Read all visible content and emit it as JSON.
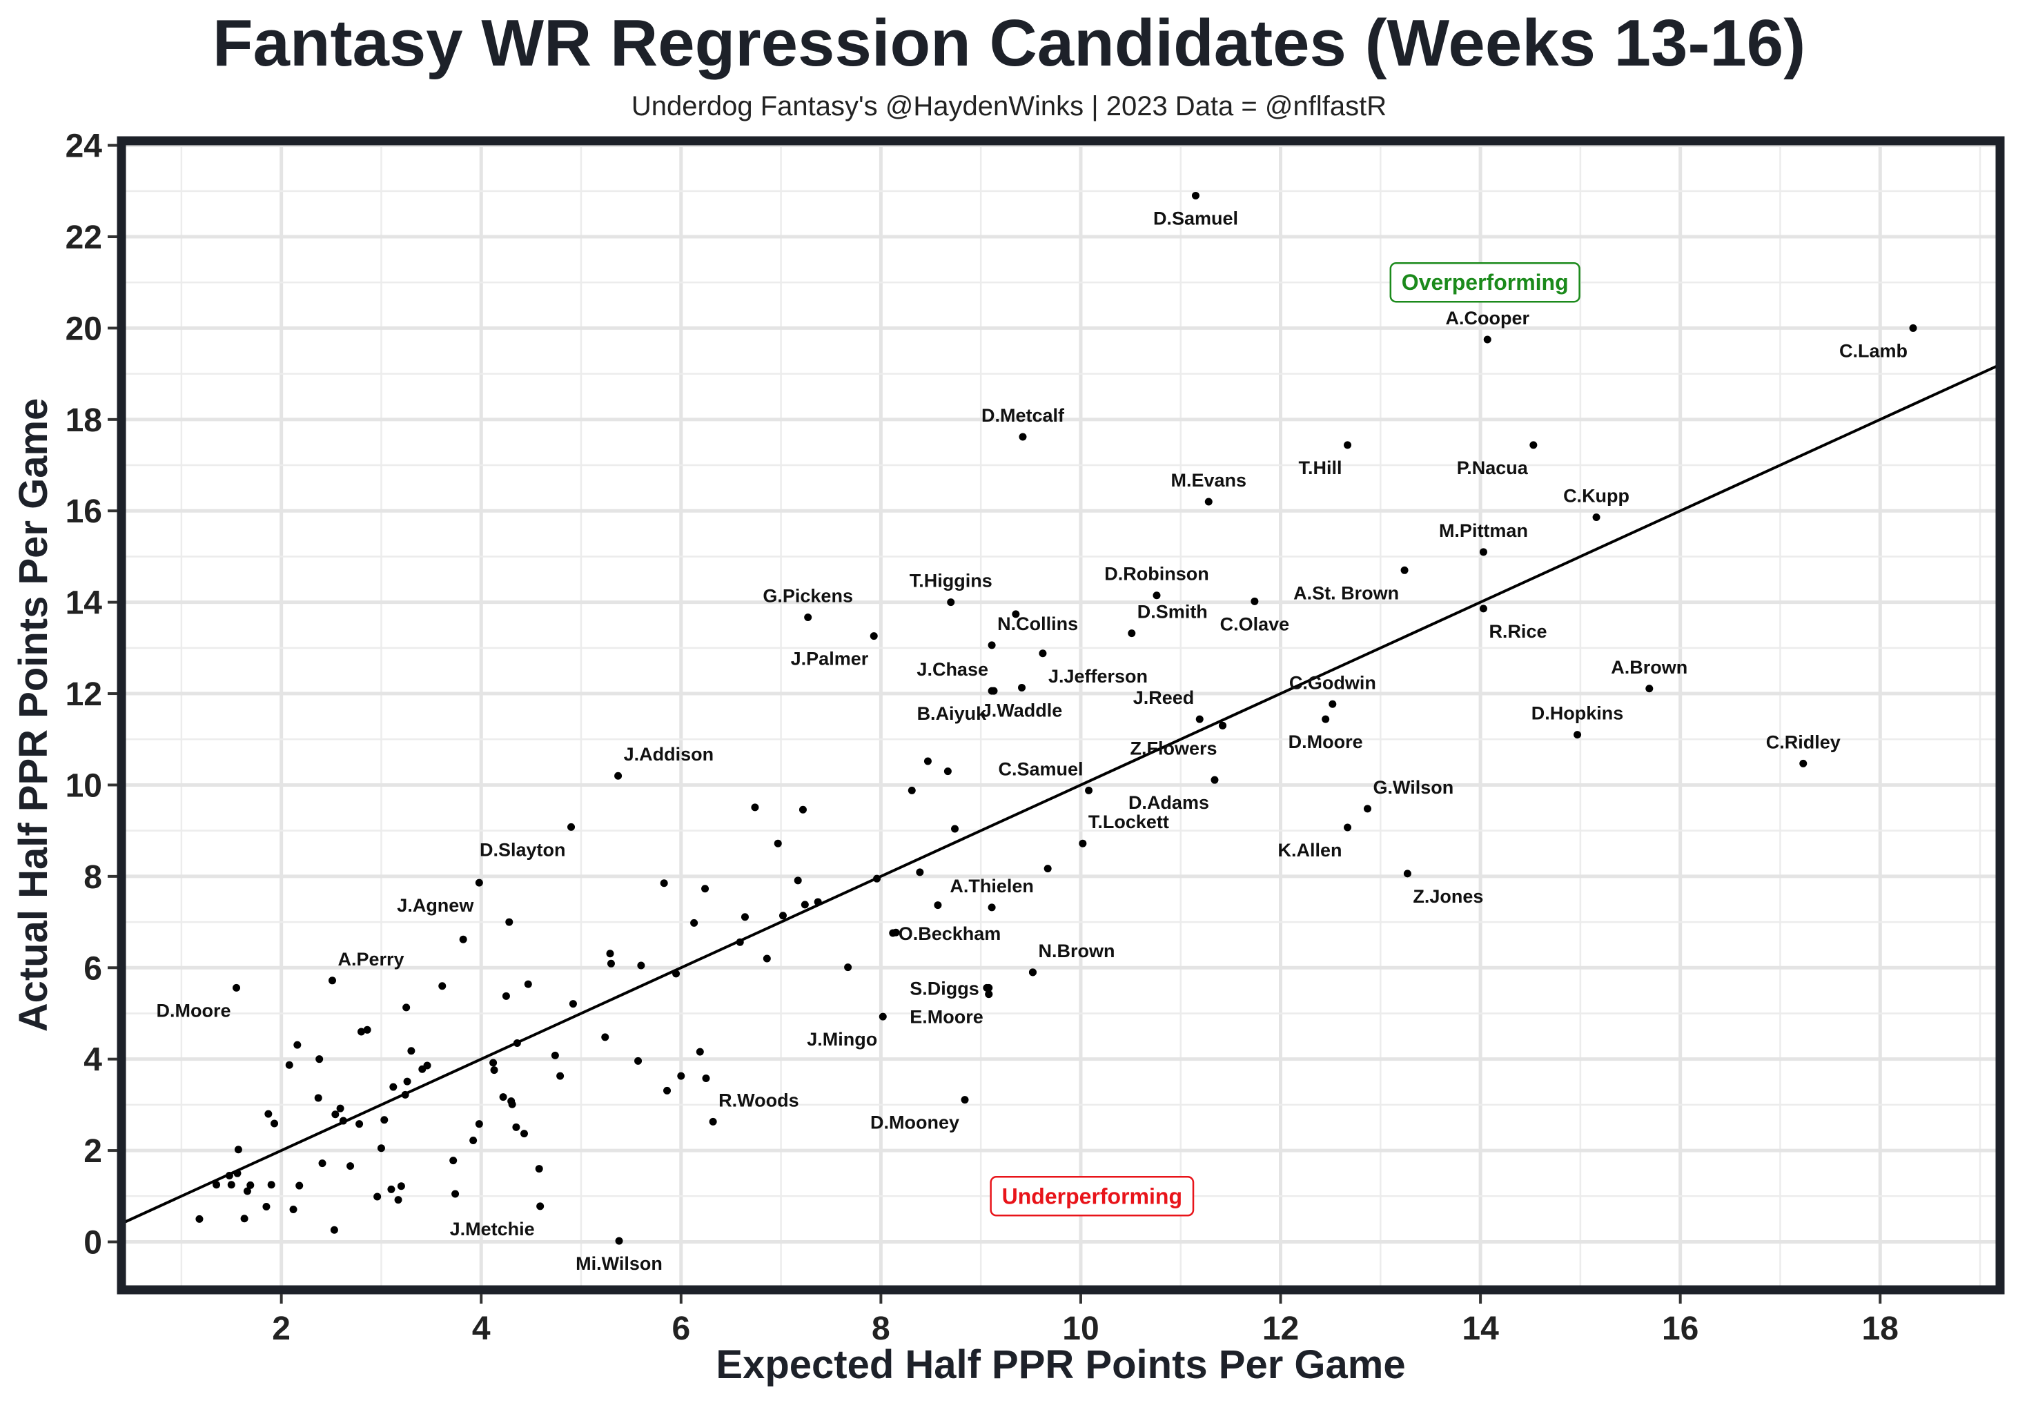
{
  "chart_data": {
    "type": "scatter",
    "title": "Fantasy WR Regression Candidates (Weeks 13-16)",
    "subtitle": "Underdog Fantasy's @HaydenWinks | 2023 Data = @nflfastR",
    "xlabel": "Expected Half PPR Points Per Game",
    "ylabel": "Actual Half PPR Points Per Game",
    "xlim": [
      0.4,
      19.2
    ],
    "ylim": [
      -1.05,
      24.1
    ],
    "x_ticks": [
      "2",
      "4",
      "6",
      "8",
      "10",
      "12",
      "14",
      "16",
      "18"
    ],
    "x_tick_values": [
      2,
      4,
      6,
      8,
      10,
      12,
      14,
      16,
      18
    ],
    "y_ticks": [
      "0",
      "2",
      "4",
      "6",
      "8",
      "10",
      "12",
      "14",
      "16",
      "18",
      "20",
      "22",
      "24"
    ],
    "y_tick_values": [
      0,
      2,
      4,
      6,
      8,
      10,
      12,
      14,
      16,
      18,
      20,
      22,
      24
    ],
    "reference_line": {
      "type": "y = x",
      "color": "#000000"
    },
    "annotations": [
      {
        "text": "Overperforming",
        "x": 13.1,
        "y": 21.0,
        "color": "#1b8a1b"
      },
      {
        "text": "Underperforming",
        "x": 9.1,
        "y": 1.0,
        "color": "#e8141a"
      }
    ],
    "labeled_points": [
      {
        "label": "D.Samuel",
        "x": 11.15,
        "y": 22.9,
        "label_pos": "below"
      },
      {
        "label": "A.Cooper",
        "x": 14.07,
        "y": 19.75,
        "label_pos": "above"
      },
      {
        "label": "C.Lamb",
        "x": 18.33,
        "y": 20.0,
        "label_pos": "below-left"
      },
      {
        "label": "D.Metcalf",
        "x": 9.42,
        "y": 17.62,
        "label_pos": "above"
      },
      {
        "label": "T.Hill",
        "x": 12.67,
        "y": 17.44,
        "label_pos": "below-left"
      },
      {
        "label": "P.Nacua",
        "x": 14.53,
        "y": 17.44,
        "label_pos": "below-left"
      },
      {
        "label": "M.Evans",
        "x": 11.28,
        "y": 16.2,
        "label_pos": "above"
      },
      {
        "label": "C.Kupp",
        "x": 15.16,
        "y": 15.86,
        "label_pos": "above"
      },
      {
        "label": "M.Pittman",
        "x": 14.03,
        "y": 15.1,
        "label_pos": "above"
      },
      {
        "label": "A.St. Brown",
        "x": 13.24,
        "y": 14.7,
        "label_pos": "below-left"
      },
      {
        "label": "D.Robinson",
        "x": 10.76,
        "y": 14.15,
        "label_pos": "above"
      },
      {
        "label": "C.Olave",
        "x": 11.74,
        "y": 14.02,
        "label_pos": "below"
      },
      {
        "label": "T.Higgins",
        "x": 8.7,
        "y": 14.0,
        "label_pos": "above"
      },
      {
        "label": "R.Rice",
        "x": 14.03,
        "y": 13.86,
        "label_pos": "below-right"
      },
      {
        "label": "G.Pickens",
        "x": 7.27,
        "y": 13.67,
        "label_pos": "above"
      },
      {
        "label": "D.Smith",
        "x": 10.51,
        "y": 13.32,
        "label_pos": "above-right"
      },
      {
        "label": "J.Palmer",
        "x": 7.93,
        "y": 13.26,
        "label_pos": "below-left"
      },
      {
        "label": "N.Collins",
        "x": 9.11,
        "y": 13.06,
        "label_pos": "above-right"
      },
      {
        "label": "J.Jefferson",
        "x": 9.62,
        "y": 12.88,
        "label_pos": "below-right"
      },
      {
        "label": "J.Chase",
        "x": 9.13,
        "y": 12.06,
        "label_pos": "above-left"
      },
      {
        "label": "J.Waddle",
        "x": 9.41,
        "y": 12.13,
        "label_pos": "below"
      },
      {
        "label": "A.Brown",
        "x": 15.69,
        "y": 12.11,
        "label_pos": "above"
      },
      {
        "label": "C.Godwin",
        "x": 12.52,
        "y": 11.77,
        "label_pos": "above"
      },
      {
        "label": "B.Aiyuk",
        "x": 9.11,
        "y": 12.06,
        "label_pos": "below-left"
      },
      {
        "label": "J.Reed",
        "x": 11.19,
        "y": 11.44,
        "label_pos": "above-left"
      },
      {
        "label": "D.Moore",
        "x": 12.45,
        "y": 11.44,
        "label_pos": "below"
      },
      {
        "label": "D.Hopkins",
        "x": 14.97,
        "y": 11.1,
        "label_pos": "above"
      },
      {
        "label": "Z.Flowers",
        "x": 11.42,
        "y": 11.3,
        "label_pos": "below-left"
      },
      {
        "label": "C.Ridley",
        "x": 17.23,
        "y": 10.47,
        "label_pos": "above"
      },
      {
        "label": "J.Addison",
        "x": 5.37,
        "y": 10.2,
        "label_pos": "above-right"
      },
      {
        "label": "D.Adams",
        "x": 11.34,
        "y": 10.11,
        "label_pos": "below-left"
      },
      {
        "label": "C.Samuel",
        "x": 10.08,
        "y": 9.88,
        "label_pos": "above-left"
      },
      {
        "label": "G.Wilson",
        "x": 12.87,
        "y": 9.48,
        "label_pos": "above-right"
      },
      {
        "label": "T.Lockett",
        "x": 10.02,
        "y": 8.72,
        "label_pos": "above-right"
      },
      {
        "label": "K.Allen",
        "x": 12.67,
        "y": 9.07,
        "label_pos": "below-left"
      },
      {
        "label": "D.Slayton",
        "x": 4.9,
        "y": 9.08,
        "label_pos": "below-left"
      },
      {
        "label": "Z.Jones",
        "x": 13.27,
        "y": 8.06,
        "label_pos": "below-right"
      },
      {
        "label": "J.Agnew",
        "x": 3.98,
        "y": 7.86,
        "label_pos": "below-left"
      },
      {
        "label": "A.Thielen",
        "x": 9.11,
        "y": 7.32,
        "label_pos": "above"
      },
      {
        "label": "O.Beckham",
        "x": 8.12,
        "y": 6.76,
        "label_pos": "right"
      },
      {
        "label": "A.Perry",
        "x": 2.51,
        "y": 5.72,
        "label_pos": "above-right"
      },
      {
        "label": "N.Brown",
        "x": 9.52,
        "y": 5.9,
        "label_pos": "above-right"
      },
      {
        "label": "S.Diggs",
        "x": 9.08,
        "y": 5.56,
        "label_pos": "left"
      },
      {
        "label": "D.Moore",
        "x": 1.55,
        "y": 5.56,
        "label_pos": "below-left"
      },
      {
        "label": "E.Moore",
        "x": 9.08,
        "y": 5.42,
        "label_pos": "below-left"
      },
      {
        "label": "J.Mingo",
        "x": 8.02,
        "y": 4.93,
        "label_pos": "below-left"
      },
      {
        "label": "R.Woods",
        "x": 6.32,
        "y": 2.63,
        "label_pos": "above-right"
      },
      {
        "label": "D.Mooney",
        "x": 8.84,
        "y": 3.11,
        "label_pos": "below-left"
      },
      {
        "label": "J.Metchie",
        "x": 4.59,
        "y": 0.78,
        "label_pos": "below-left"
      },
      {
        "label": "Mi.Wilson",
        "x": 5.38,
        "y": 0.02,
        "label_pos": "below"
      }
    ],
    "unlabeled_points": [
      [
        1.18,
        0.5
      ],
      [
        1.35,
        1.25
      ],
      [
        1.48,
        1.45
      ],
      [
        1.5,
        1.25
      ],
      [
        1.56,
        1.5
      ],
      [
        1.57,
        2.02
      ],
      [
        1.63,
        0.51
      ],
      [
        1.66,
        1.11
      ],
      [
        1.69,
        1.24
      ],
      [
        1.85,
        0.77
      ],
      [
        1.87,
        2.8
      ],
      [
        1.9,
        1.25
      ],
      [
        1.93,
        2.59
      ],
      [
        2.08,
        3.87
      ],
      [
        2.12,
        0.71
      ],
      [
        2.16,
        4.31
      ],
      [
        2.18,
        1.23
      ],
      [
        2.37,
        3.15
      ],
      [
        2.38,
        4.0
      ],
      [
        2.41,
        1.72
      ],
      [
        2.53,
        0.26
      ],
      [
        2.54,
        2.79
      ],
      [
        2.59,
        2.92
      ],
      [
        2.62,
        2.65
      ],
      [
        2.69,
        1.66
      ],
      [
        2.78,
        2.58
      ],
      [
        2.8,
        4.6
      ],
      [
        2.86,
        4.64
      ],
      [
        2.96,
        0.99
      ],
      [
        3.0,
        2.05
      ],
      [
        3.03,
        2.67
      ],
      [
        3.1,
        1.15
      ],
      [
        3.12,
        3.39
      ],
      [
        3.17,
        0.92
      ],
      [
        3.2,
        1.22
      ],
      [
        3.24,
        3.22
      ],
      [
        3.25,
        5.13
      ],
      [
        3.26,
        3.51
      ],
      [
        3.3,
        4.18
      ],
      [
        3.41,
        3.78
      ],
      [
        3.46,
        3.86
      ],
      [
        3.61,
        5.6
      ],
      [
        3.72,
        1.78
      ],
      [
        3.74,
        1.05
      ],
      [
        3.82,
        6.62
      ],
      [
        3.92,
        2.22
      ],
      [
        3.98,
        2.58
      ],
      [
        4.12,
        3.92
      ],
      [
        4.13,
        3.76
      ],
      [
        4.22,
        3.17
      ],
      [
        4.25,
        5.38
      ],
      [
        4.28,
        7.0
      ],
      [
        4.3,
        3.08
      ],
      [
        4.31,
        3.01
      ],
      [
        4.35,
        2.51
      ],
      [
        4.36,
        4.35
      ],
      [
        4.43,
        2.37
      ],
      [
        4.47,
        5.64
      ],
      [
        4.58,
        1.6
      ],
      [
        4.74,
        4.08
      ],
      [
        4.79,
        3.63
      ],
      [
        4.92,
        5.21
      ],
      [
        5.24,
        4.48
      ],
      [
        5.29,
        6.31
      ],
      [
        5.3,
        6.09
      ],
      [
        5.57,
        3.96
      ],
      [
        5.6,
        6.05
      ],
      [
        5.83,
        7.85
      ],
      [
        5.86,
        3.31
      ],
      [
        5.95,
        5.87
      ],
      [
        6.0,
        3.63
      ],
      [
        6.13,
        6.98
      ],
      [
        6.19,
        4.16
      ],
      [
        6.24,
        7.73
      ],
      [
        6.25,
        3.58
      ],
      [
        6.59,
        6.56
      ],
      [
        6.64,
        7.11
      ],
      [
        6.74,
        9.51
      ],
      [
        6.86,
        6.2
      ],
      [
        6.97,
        8.72
      ],
      [
        7.02,
        7.14
      ],
      [
        7.17,
        7.91
      ],
      [
        7.22,
        9.46
      ],
      [
        7.24,
        7.38
      ],
      [
        7.37,
        7.44
      ],
      [
        7.67,
        6.01
      ],
      [
        7.96,
        7.95
      ],
      [
        8.15,
        6.77
      ],
      [
        8.31,
        9.88
      ],
      [
        8.39,
        8.09
      ],
      [
        8.47,
        10.52
      ],
      [
        8.57,
        7.37
      ],
      [
        8.67,
        10.3
      ],
      [
        8.74,
        9.04
      ],
      [
        9.06,
        5.56
      ],
      [
        9.08,
        5.42
      ],
      [
        9.35,
        13.74
      ],
      [
        9.52,
        5.9
      ],
      [
        9.67,
        8.17
      ],
      [
        11.42,
        11.3
      ]
    ]
  }
}
